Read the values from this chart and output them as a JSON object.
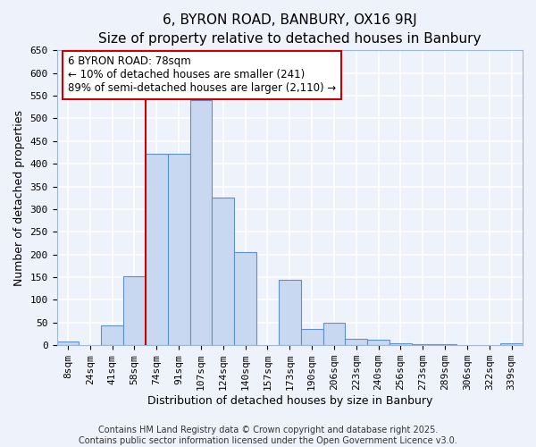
{
  "title": "6, BYRON ROAD, BANBURY, OX16 9RJ",
  "subtitle": "Size of property relative to detached houses in Banbury",
  "xlabel": "Distribution of detached houses by size in Banbury",
  "ylabel": "Number of detached properties",
  "bar_labels": [
    "8sqm",
    "24sqm",
    "41sqm",
    "58sqm",
    "74sqm",
    "91sqm",
    "107sqm",
    "124sqm",
    "140sqm",
    "157sqm",
    "173sqm",
    "190sqm",
    "206sqm",
    "223sqm",
    "240sqm",
    "256sqm",
    "273sqm",
    "289sqm",
    "306sqm",
    "322sqm",
    "339sqm"
  ],
  "bar_values": [
    8,
    0,
    44,
    153,
    422,
    422,
    541,
    325,
    205,
    0,
    144,
    35,
    49,
    15,
    13,
    5,
    3,
    2,
    1,
    1,
    5
  ],
  "bar_color": "#c8d8f0",
  "bar_edgecolor": "#6090c8",
  "bar_linewidth": 0.8,
  "ylim": [
    0,
    650
  ],
  "yticks": [
    0,
    50,
    100,
    150,
    200,
    250,
    300,
    350,
    400,
    450,
    500,
    550,
    600,
    650
  ],
  "vline_x_idx": 4,
  "vline_color": "#cc0000",
  "annotation_text": "6 BYRON ROAD: 78sqm\n← 10% of detached houses are smaller (241)\n89% of semi-detached houses are larger (2,110) →",
  "annotation_box_color": "#ffffff",
  "annotation_box_edgecolor": "#cc0000",
  "footer1": "Contains HM Land Registry data © Crown copyright and database right 2025.",
  "footer2": "Contains public sector information licensed under the Open Government Licence v3.0.",
  "background_color": "#eef2fb",
  "grid_color": "#ffffff",
  "title_fontsize": 11,
  "axis_label_fontsize": 9,
  "tick_fontsize": 8,
  "annotation_fontsize": 8.5,
  "footer_fontsize": 7
}
